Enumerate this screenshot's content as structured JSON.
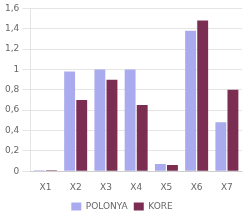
{
  "chart_data": {
    "type": "bar",
    "categories": [
      "X1",
      "X2",
      "X3",
      "X4",
      "X5",
      "X6",
      "X7"
    ],
    "series": [
      {
        "name": "POLONYA",
        "color": "#aaaaee",
        "values": [
          0.01,
          0.98,
          1.0,
          1.0,
          0.07,
          1.38,
          0.48
        ]
      },
      {
        "name": "KORE",
        "color": "#7b2d52",
        "values": [
          0.01,
          0.7,
          0.9,
          0.65,
          0.06,
          1.48,
          0.8
        ]
      }
    ],
    "ylim": [
      0,
      1.6
    ],
    "yticks": [
      0,
      {
        "value": 0.2,
        "label": "0,2"
      },
      {
        "value": 0.4,
        "label": "0,4"
      },
      {
        "value": 0.6,
        "label": "0,6"
      },
      {
        "value": 0.8,
        "label": "0,8"
      },
      1,
      {
        "value": 1.2,
        "label": "1,2"
      },
      {
        "value": 1.4,
        "label": "1,4"
      },
      {
        "value": 1.6,
        "label": "1,6"
      }
    ],
    "grid": true,
    "legend": "bottom"
  }
}
